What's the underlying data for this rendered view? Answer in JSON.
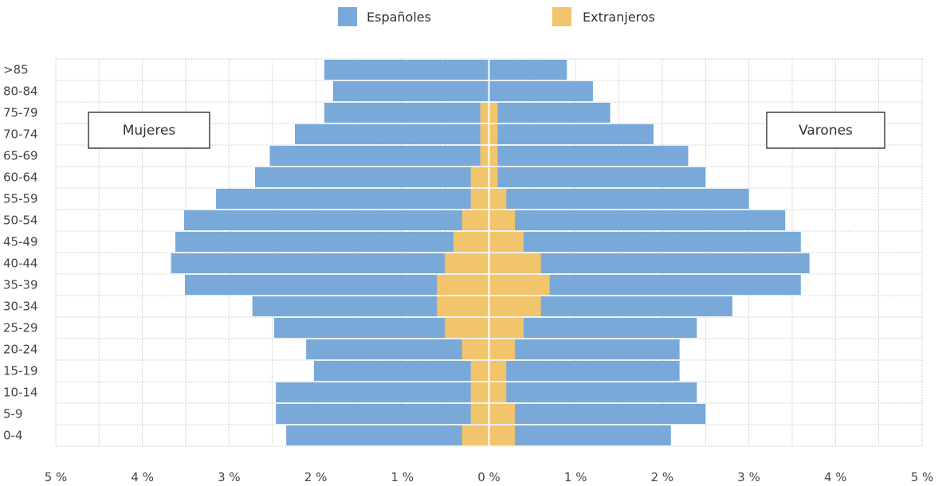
{
  "chart_data": {
    "type": "bar",
    "orientation": "horizontal",
    "layout": "population-pyramid",
    "categories": [
      "0-4",
      "5-9",
      "10-14",
      "15-19",
      "20-24",
      "25-29",
      "30-34",
      "35-39",
      "40-44",
      "45-49",
      "50-54",
      "55-59",
      "60-64",
      "65-69",
      "70-74",
      "75-79",
      "80-84",
      ">85"
    ],
    "legend": [
      {
        "name": "Españoles",
        "color": "#78a9d8"
      },
      {
        "name": "Extranjeros",
        "color": "#f2c46b"
      }
    ],
    "legend_position": "top",
    "side_labels": {
      "left": "Mujeres",
      "right": "Varones"
    },
    "xlim": [
      -5,
      5
    ],
    "x_ticks": [
      -5,
      -4,
      -3,
      -2,
      -1,
      0,
      1,
      2,
      3,
      4,
      5
    ],
    "x_tick_labels": [
      "5 %",
      "4 %",
      "3 %",
      "2 %",
      "1 %",
      "0 %",
      "1 %",
      "2 %",
      "3 %",
      "4 %",
      "5 %"
    ],
    "grid": true,
    "series": {
      "mujeres": {
        "espanoles": [
          2.34,
          2.46,
          2.46,
          2.02,
          2.11,
          2.48,
          2.73,
          3.51,
          3.67,
          3.62,
          3.52,
          3.15,
          2.7,
          2.53,
          2.24,
          1.9,
          1.8,
          1.9
        ],
        "extranjeros": [
          0.31,
          0.21,
          0.21,
          0.21,
          0.31,
          0.51,
          0.6,
          0.6,
          0.51,
          0.41,
          0.31,
          0.21,
          0.21,
          0.1,
          0.1,
          0.1,
          0,
          0
        ]
      },
      "varones": {
        "espanoles": [
          2.1,
          2.5,
          2.4,
          2.2,
          2.2,
          2.4,
          2.81,
          3.6,
          3.7,
          3.6,
          3.42,
          3.0,
          2.5,
          2.3,
          1.9,
          1.4,
          1.2,
          0.9
        ],
        "extranjeros": [
          0.3,
          0.3,
          0.2,
          0.2,
          0.3,
          0.4,
          0.6,
          0.7,
          0.6,
          0.4,
          0.3,
          0.2,
          0.1,
          0.1,
          0.1,
          0.1,
          0,
          0
        ]
      }
    }
  }
}
